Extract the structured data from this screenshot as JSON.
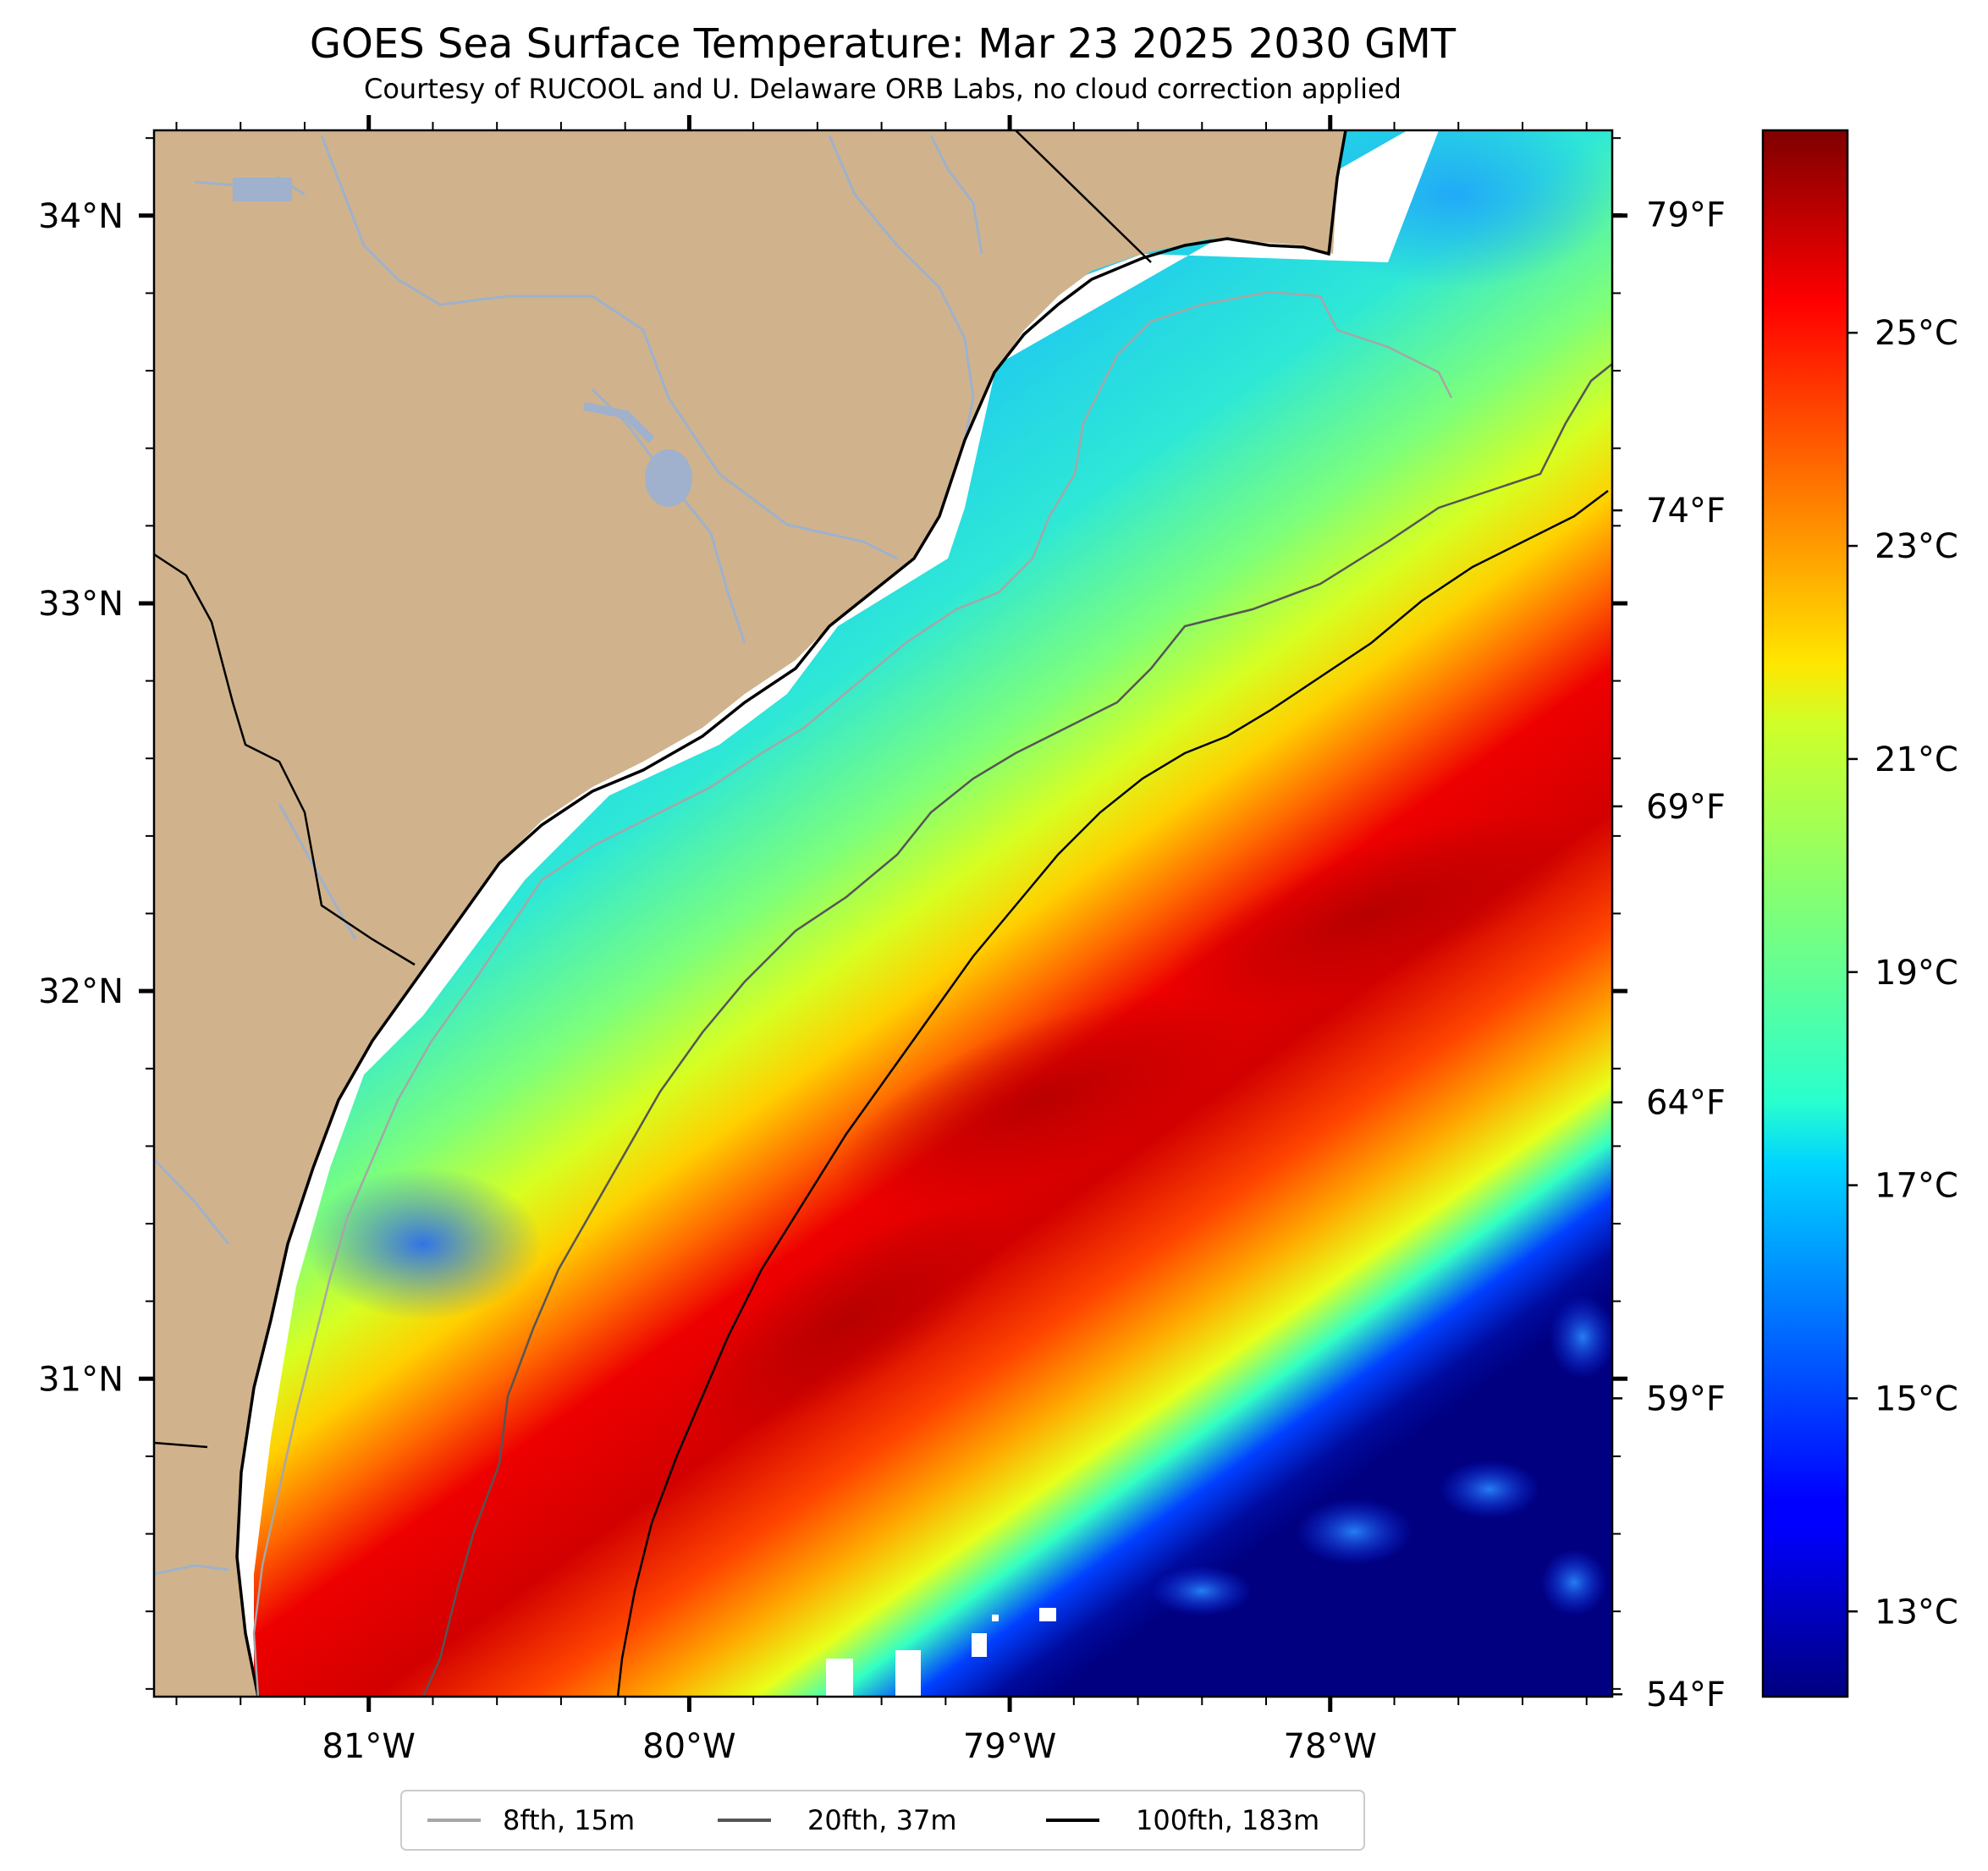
{
  "title": "GOES Sea Surface Temperature: Mar 23 2025 2030 GMT",
  "subtitle": "Courtesy of RUCOOL and U. Delaware ORB Labs, no cloud correction applied",
  "map": {
    "lon_range": [
      -81.67,
      -77.12
    ],
    "lat_range": [
      30.18,
      34.22
    ],
    "lon_ticks": [
      {
        "value": -81,
        "label": "81°W"
      },
      {
        "value": -80,
        "label": "80°W"
      },
      {
        "value": -79,
        "label": "79°W"
      },
      {
        "value": -78,
        "label": "78°W"
      }
    ],
    "lat_ticks": [
      {
        "value": 34,
        "label": "34°N"
      },
      {
        "value": 33,
        "label": "33°N"
      },
      {
        "value": 32,
        "label": "32°N"
      },
      {
        "value": 31,
        "label": "31°N"
      }
    ],
    "colors": {
      "land": "#d0b38c",
      "rivers": "#9fb1cc",
      "coast": "#000000",
      "missing": "#ffffff"
    }
  },
  "fahrenheit_axis": {
    "ticks": [
      {
        "value": 79,
        "label": "79°F"
      },
      {
        "value": 74,
        "label": "74°F"
      },
      {
        "value": 69,
        "label": "69°F"
      },
      {
        "value": 64,
        "label": "64°F"
      },
      {
        "value": 59,
        "label": "59°F"
      },
      {
        "value": 54,
        "label": "54°F"
      }
    ]
  },
  "colorbar": {
    "range_c": [
      12.2,
      26.9
    ],
    "colormap": "jet",
    "ticks": [
      {
        "value": 25,
        "label": "25°C"
      },
      {
        "value": 23,
        "label": "23°C"
      },
      {
        "value": 21,
        "label": "21°C"
      },
      {
        "value": 19,
        "label": "19°C"
      },
      {
        "value": 17,
        "label": "17°C"
      },
      {
        "value": 15,
        "label": "15°C"
      },
      {
        "value": 13,
        "label": "13°C"
      }
    ]
  },
  "legend": [
    {
      "label": "8fth, 15m",
      "color": "#a6a6a6"
    },
    {
      "label": "20fth, 37m",
      "color": "#555555"
    },
    {
      "label": "100fth, 183m",
      "color": "#000000"
    }
  ]
}
